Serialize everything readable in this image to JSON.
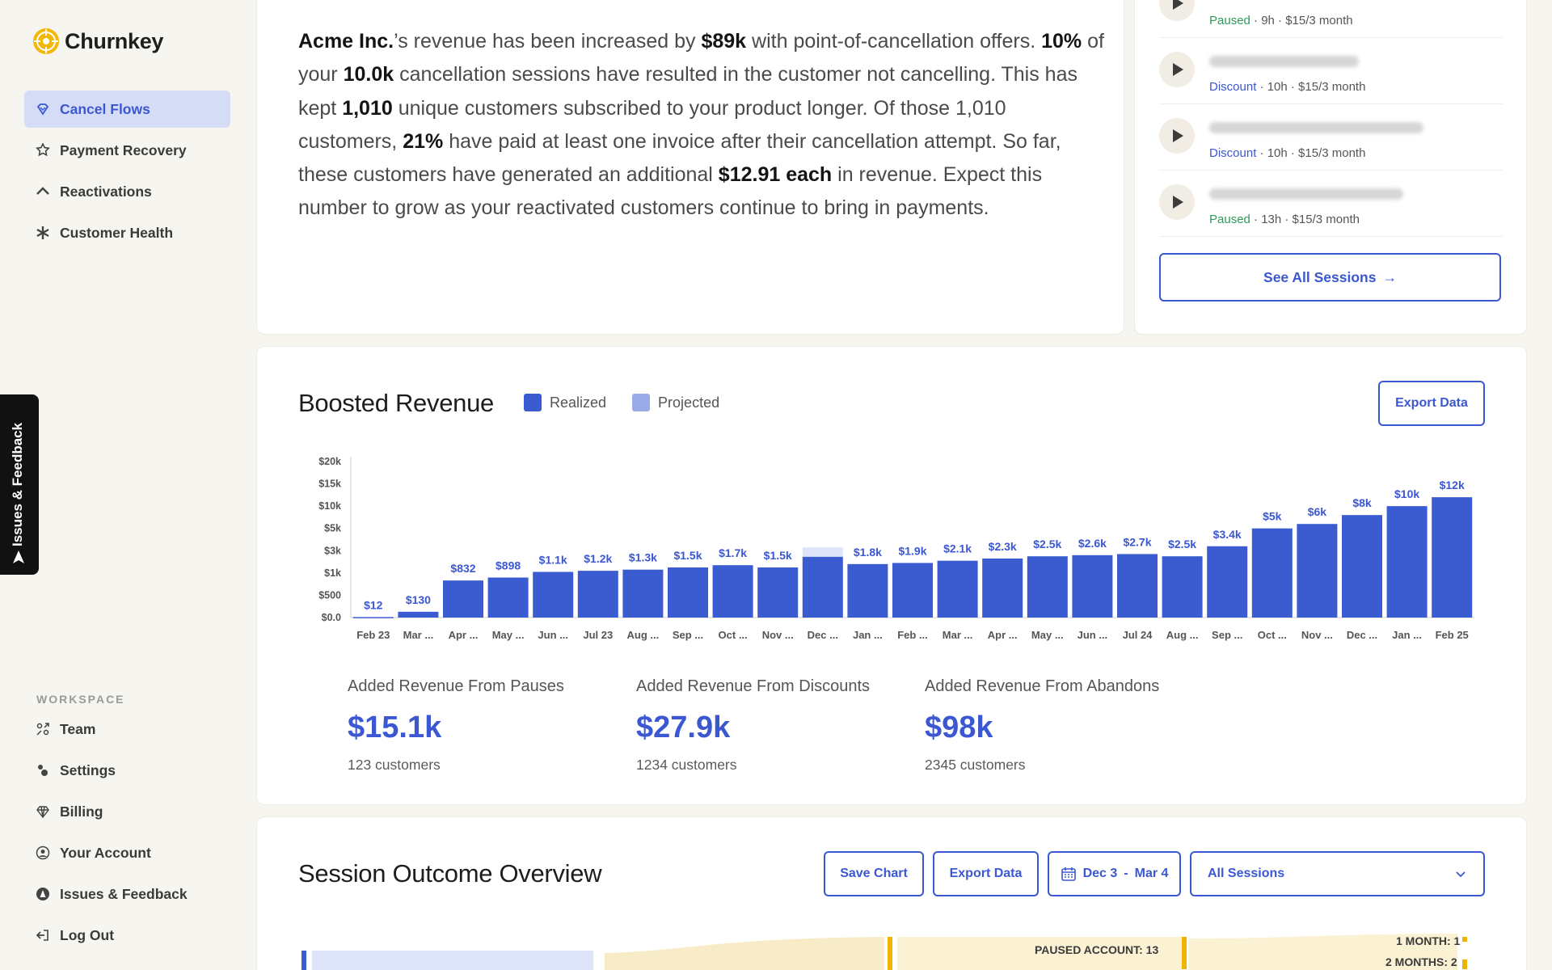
{
  "brand": {
    "name": "Churnkey"
  },
  "sidebar": {
    "items": [
      {
        "label": "Cancel Flows",
        "icon": "heart-diamond-icon"
      },
      {
        "label": "Payment Recovery",
        "icon": "star-badge-icon"
      },
      {
        "label": "Reactivations",
        "icon": "arrow-up-icon"
      },
      {
        "label": "Customer Health",
        "icon": "asterisk-icon"
      }
    ],
    "workspace_label": "WORKSPACE",
    "workspace_items": [
      {
        "label": "Team",
        "icon": "team-icon"
      },
      {
        "label": "Settings",
        "icon": "settings-icon"
      },
      {
        "label": "Billing",
        "icon": "diamond-icon"
      },
      {
        "label": "Your Account",
        "icon": "user-circle-icon"
      },
      {
        "label": "Issues & Feedback",
        "icon": "feedback-icon"
      },
      {
        "label": "Log Out",
        "icon": "logout-icon"
      }
    ]
  },
  "feedback_tab": {
    "label": "Issues & Feedback"
  },
  "summary": {
    "company": "Acme Inc.",
    "revenue_increase": "$89k",
    "pct_not_cancelling": "10%",
    "sessions_total": "10.0k",
    "customers_kept": "1,010",
    "pct_paid": "21%",
    "per_customer": "$12.91",
    "each": "each",
    "t1": "’s revenue has been increased by ",
    "t2": " with point-of-cancellation offers. ",
    "t3": " of your ",
    "t4": " cancellation sessions have resulted in the customer not cancelling. This has kept ",
    "t5": " unique customers subscribed to your product longer. Of those 1,010 customers, ",
    "t6": " have paid at least one invoice after their cancellation attempt. So far, these customers have generated an additional ",
    "t7": " in revenue. Expect this number to grow as your reactivated customers continue to bring in payments."
  },
  "sessions": {
    "rows": [
      {
        "status": "Paused",
        "meta": " · 9h · $15/3 month",
        "email_width": 0
      },
      {
        "status": "Discount",
        "meta": " · 10h · $15/3 month",
        "email_width": 185
      },
      {
        "status": "Discount",
        "meta": " · 10h · $15/3 month",
        "email_width": 265
      },
      {
        "status": "Paused",
        "meta": " · 13h · $15/3 month",
        "email_width": 240
      }
    ],
    "see_all_label": "See All Sessions",
    "see_all_arrow": "→"
  },
  "revenue": {
    "title": "Boosted Revenue",
    "legend": [
      {
        "label": "Realized",
        "color": "#3b5bd1"
      },
      {
        "label": "Projected",
        "color": "#9aabe8"
      }
    ],
    "export_label": "Export Data",
    "stats": [
      {
        "label": "Added Revenue From Pauses",
        "value": "$15.1k",
        "sub": "123 customers"
      },
      {
        "label": "Added Revenue From Discounts",
        "value": "$27.9k",
        "sub": "1234 customers"
      },
      {
        "label": "Added Revenue From Abandons",
        "value": "$98k",
        "sub": "2345 customers"
      }
    ]
  },
  "chart_data": {
    "type": "bar",
    "title": "Boosted Revenue",
    "y_ticks": [
      "$20k",
      "$15k",
      "$10k",
      "$5k",
      "$3k",
      "$1k",
      "$500",
      "$0.0"
    ],
    "y_tick_values": [
      20000,
      15000,
      10000,
      5000,
      3000,
      1000,
      500,
      0
    ],
    "categories": [
      "Feb 23",
      "Mar ...",
      "Apr ...",
      "May ...",
      "Jun ...",
      "Jul 23",
      "Aug ...",
      "Sep ...",
      "Oct ...",
      "Nov ...",
      "Dec ...",
      "Jan ...",
      "Feb ...",
      "Mar ...",
      "Apr ...",
      "May ...",
      "Jun ...",
      "Jul 24",
      "Aug ...",
      "Sep ...",
      "Oct ...",
      "Nov ...",
      "Dec ...",
      "Jan ...",
      "Feb 25"
    ],
    "series": [
      {
        "name": "Realized",
        "values": [
          12,
          130,
          832,
          898,
          1100,
          1200,
          1300,
          1500,
          1700,
          1500,
          2450,
          1800,
          1900,
          2100,
          2300,
          2500,
          2600,
          2700,
          2500,
          3400,
          5000,
          6000,
          8000,
          10000,
          12000
        ],
        "labels": [
          "$12",
          "$130",
          "$832",
          "$898",
          "$1.1k",
          "$1.2k",
          "$1.3k",
          "$1.5k",
          "$1.7k",
          "$1.5k",
          "",
          "$1.8k",
          "$1.9k",
          "$2.1k",
          "$2.3k",
          "$2.5k",
          "$2.6k",
          "$2.7k",
          "$2.5k",
          "$3.4k",
          "$5k",
          "$6k",
          "$8k",
          "$10k",
          "$12k"
        ]
      },
      {
        "name": "Projected",
        "values": [
          0,
          0,
          0,
          0,
          0,
          0,
          0,
          0,
          0,
          0,
          3300,
          0,
          0,
          0,
          0,
          0,
          0,
          0,
          0,
          0,
          0,
          0,
          0,
          0,
          0
        ]
      }
    ],
    "colors": {
      "realized": "#3b5bd1",
      "projected": "#dfe5f8"
    }
  },
  "outcome": {
    "title": "Session Outcome Overview",
    "save_label": "Save Chart",
    "export_label": "Export Data",
    "date_from": "Dec 3",
    "date_sep": "-",
    "date_to": "Mar 4",
    "filter_label": "All Sessions",
    "sankey_labels": [
      "PAUSED ACCOUNT: 13",
      "1 MONTH: 1",
      "2 MONTHS: 2"
    ]
  }
}
